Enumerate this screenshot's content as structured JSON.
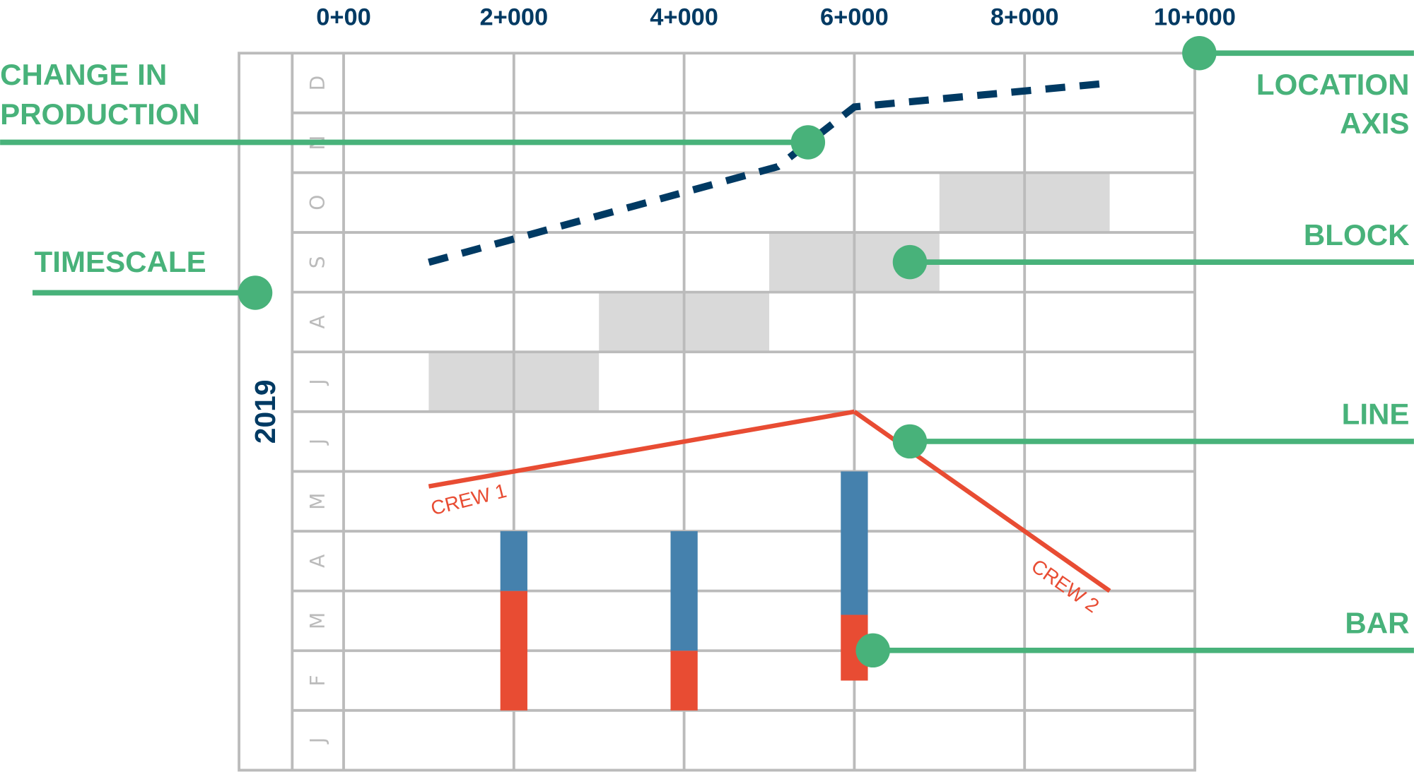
{
  "chart_data": {
    "type": "line",
    "x_axis": {
      "range": [
        0,
        10000
      ],
      "tick_values": [
        0,
        2000,
        4000,
        6000,
        8000,
        10000
      ],
      "tick_labels": [
        "0+00",
        "2+000",
        "4+000",
        "6+000",
        "8+000",
        "10+000"
      ]
    },
    "y_axis": {
      "range_months": [
        0,
        12
      ],
      "year": "2019",
      "months_bottom_to_top": [
        "J",
        "F",
        "M",
        "A",
        "M",
        "J",
        "J",
        "A",
        "S",
        "O",
        "N",
        "D"
      ]
    },
    "grid": true,
    "blocks": [
      {
        "location": [
          1000,
          3000
        ],
        "month_index": 6
      },
      {
        "location": [
          3000,
          5000
        ],
        "month_index": 7
      },
      {
        "location": [
          5000,
          7000
        ],
        "month_index": 8
      },
      {
        "location": [
          7000,
          9000
        ],
        "month_index": 9
      }
    ],
    "dashed_line": {
      "color": "#003a63",
      "points": [
        [
          1000,
          8.5
        ],
        [
          5100,
          10.1
        ],
        [
          6000,
          11.1
        ],
        [
          9000,
          11.5
        ]
      ]
    },
    "lines": [
      {
        "name": "CREW 1",
        "color": "#e84c33",
        "points": [
          [
            1000,
            4.75
          ],
          [
            6000,
            6.0
          ]
        ]
      },
      {
        "name": "CREW 2",
        "color": "#e84c33",
        "points": [
          [
            6000,
            6.0
          ],
          [
            9000,
            3.0
          ]
        ]
      }
    ],
    "bars": [
      {
        "location": 2000,
        "segments": [
          {
            "color": "#e84c33",
            "from": 1.0,
            "to": 3.0
          },
          {
            "color": "#4581ad",
            "from": 3.0,
            "to": 4.0
          }
        ]
      },
      {
        "location": 4000,
        "segments": [
          {
            "color": "#e84c33",
            "from": 1.0,
            "to": 2.0
          },
          {
            "color": "#4581ad",
            "from": 2.0,
            "to": 4.0
          }
        ]
      },
      {
        "location": 6000,
        "segments": [
          {
            "color": "#e84c33",
            "from": 1.5,
            "to": 2.6
          },
          {
            "color": "#4581ad",
            "from": 2.6,
            "to": 5.0
          }
        ]
      }
    ]
  },
  "callouts": {
    "change_in_production": [
      "CHANGE IN",
      "PRODUCTION"
    ],
    "timescale": "TIMESCALE",
    "location_axis": [
      "LOCATION",
      "AXIS"
    ],
    "block": "BLOCK",
    "line": "LINE",
    "bar": "BAR"
  },
  "colors": {
    "callout": "#48b27a",
    "grid": "#bbbbbb",
    "block": "#d9d9d9",
    "navy": "#003a63",
    "red": "#e84c33",
    "blue": "#4581ad"
  }
}
